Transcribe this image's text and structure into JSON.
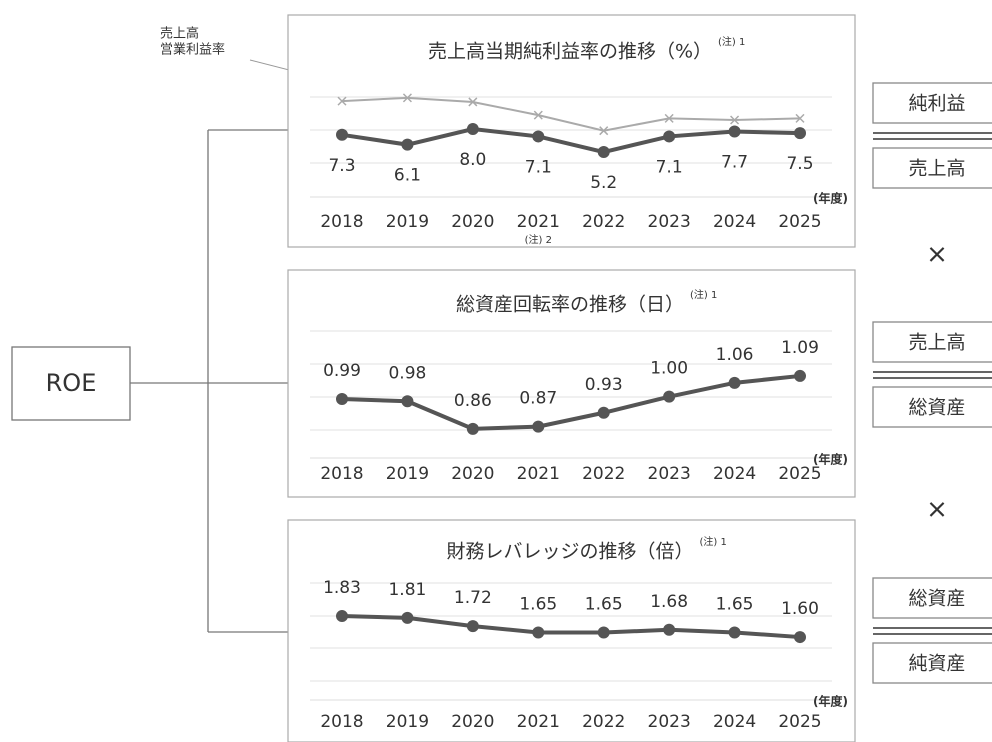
{
  "roe_label": "ROE",
  "operator": "×",
  "fractions": [
    {
      "numerator": "純利益",
      "denominator": "売上高"
    },
    {
      "numerator": "売上高",
      "denominator": "総資産"
    },
    {
      "numerator": "総資産",
      "denominator": "純資産"
    }
  ],
  "chart_data": [
    {
      "type": "line",
      "title": "売上高当期純利益率の推移（%）",
      "note": "(注) 1",
      "annotation": [
        "売上高",
        "営業利益率"
      ],
      "x_label": "(年度)",
      "categories": [
        "2018",
        "2019",
        "2020",
        "2021",
        "2022",
        "2023",
        "2024",
        "2025"
      ],
      "category_notes": [
        null,
        null,
        null,
        "(注) 2",
        null,
        null,
        null,
        null
      ],
      "ylim": [
        3.5,
        13
      ],
      "series": [
        {
          "color": "#555555",
          "values": [
            7.3,
            6.1,
            8.0,
            7.1,
            5.2,
            7.1,
            7.7,
            7.5
          ],
          "value_labels": [
            "7.3",
            "6.1",
            "8.0",
            "7.1",
            "5.2",
            "7.1",
            "7.7",
            "7.5"
          ]
        },
        {
          "color": "#aaaaaa",
          "marker": "x",
          "values": [
            11.4,
            11.8,
            11.3,
            9.7,
            7.8,
            9.3,
            9.1,
            9.3
          ]
        }
      ]
    },
    {
      "type": "line",
      "title": "総資産回転率の推移（日）",
      "note": "(注) 1",
      "x_label": "(年度)",
      "categories": [
        "2018",
        "2019",
        "2020",
        "2021",
        "2022",
        "2023",
        "2024",
        "2025"
      ],
      "ylim": [
        0.79,
        1.22
      ],
      "series": [
        {
          "color": "#555555",
          "values": [
            0.99,
            0.98,
            0.86,
            0.87,
            0.93,
            1.0,
            1.06,
            1.09
          ],
          "value_labels": [
            "0.99",
            "0.98",
            "0.86",
            "0.87",
            "0.93",
            "1.00",
            "1.06",
            "1.09"
          ]
        }
      ]
    },
    {
      "type": "line",
      "title": "財務レバレッジの推移（倍）",
      "note": "(注) 1",
      "x_label": "(年度)",
      "categories": [
        "2018",
        "2019",
        "2020",
        "2021",
        "2022",
        "2023",
        "2024",
        "2025"
      ],
      "ylim": [
        1.13,
        2.17
      ],
      "series": [
        {
          "color": "#555555",
          "values": [
            1.83,
            1.81,
            1.72,
            1.65,
            1.65,
            1.68,
            1.65,
            1.6
          ],
          "value_labels": [
            "1.83",
            "1.81",
            "1.72",
            "1.65",
            "1.65",
            "1.68",
            "1.65",
            "1.60"
          ]
        }
      ]
    }
  ]
}
